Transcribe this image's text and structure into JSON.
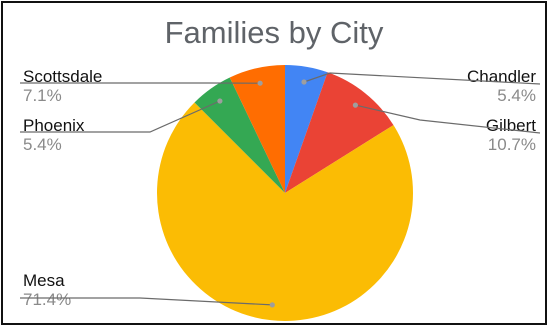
{
  "chart_data": {
    "type": "pie",
    "title": "Families by City",
    "slices": [
      {
        "label": "Chandler",
        "value": 5.4,
        "display": "5.4%",
        "color": "#4285f4"
      },
      {
        "label": "Gilbert",
        "value": 10.7,
        "display": "10.7%",
        "color": "#ea4335"
      },
      {
        "label": "Mesa",
        "value": 71.4,
        "display": "71.4%",
        "color": "#fbbc04"
      },
      {
        "label": "Phoenix",
        "value": 5.4,
        "display": "5.4%",
        "color": "#34a853"
      },
      {
        "label": "Scottsdale",
        "value": 7.1,
        "display": "7.1%",
        "color": "#ff6d01"
      }
    ],
    "legend": "none",
    "labels": "outside with leader lines"
  }
}
